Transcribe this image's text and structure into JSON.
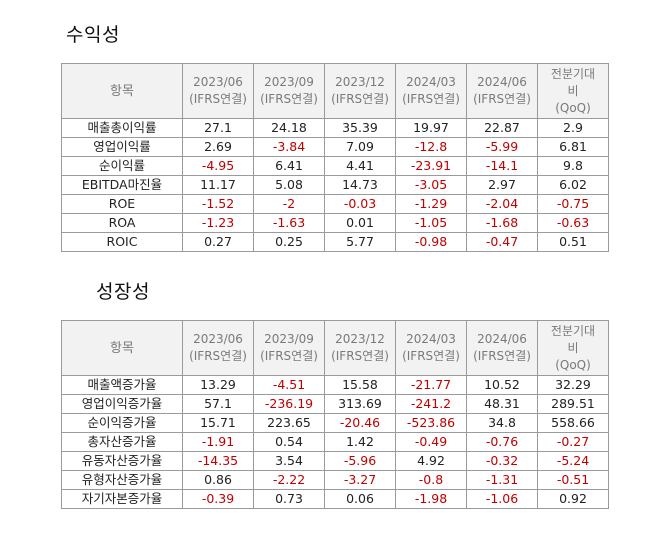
{
  "sections": [
    {
      "title": "수익성",
      "header": {
        "item": "항목",
        "periods": [
          {
            "period": "2023/06",
            "basis": "(IFRS연결)"
          },
          {
            "period": "2023/09",
            "basis": "(IFRS연결)"
          },
          {
            "period": "2023/12",
            "basis": "(IFRS연결)"
          },
          {
            "period": "2024/03",
            "basis": "(IFRS연결)"
          },
          {
            "period": "2024/06",
            "basis": "(IFRS연결)"
          }
        ],
        "qoq_line1": "전분기대",
        "qoq_line2": "비",
        "qoq_line3": "(QoQ)"
      },
      "rows": [
        {
          "label": "매출총이익률",
          "values": [
            "27.1",
            "24.18",
            "35.39",
            "19.97",
            "22.87",
            "2.9"
          ]
        },
        {
          "label": "영업이익률",
          "values": [
            "2.69",
            "-3.84",
            "7.09",
            "-12.8",
            "-5.99",
            "6.81"
          ]
        },
        {
          "label": "순이익률",
          "values": [
            "-4.95",
            "6.41",
            "4.41",
            "-23.91",
            "-14.1",
            "9.8"
          ]
        },
        {
          "label": "EBITDA마진율",
          "values": [
            "11.17",
            "5.08",
            "14.73",
            "-3.05",
            "2.97",
            "6.02"
          ]
        },
        {
          "label": "ROE",
          "values": [
            "-1.52",
            "-2",
            "-0.03",
            "-1.29",
            "-2.04",
            "-0.75"
          ]
        },
        {
          "label": "ROA",
          "values": [
            "-1.23",
            "-1.63",
            "0.01",
            "-1.05",
            "-1.68",
            "-0.63"
          ]
        },
        {
          "label": "ROIC",
          "values": [
            "0.27",
            "0.25",
            "5.77",
            "-0.98",
            "-0.47",
            "0.51"
          ]
        }
      ]
    },
    {
      "title": "성장성",
      "header": {
        "item": "항목",
        "periods": [
          {
            "period": "2023/06",
            "basis": "(IFRS연결)"
          },
          {
            "period": "2023/09",
            "basis": "(IFRS연결)"
          },
          {
            "period": "2023/12",
            "basis": "(IFRS연결)"
          },
          {
            "period": "2024/03",
            "basis": "(IFRS연결)"
          },
          {
            "period": "2024/06",
            "basis": "(IFRS연결)"
          }
        ],
        "qoq_line1": "전분기대",
        "qoq_line2": "비",
        "qoq_line3": "(QoQ)"
      },
      "rows": [
        {
          "label": "매출액증가율",
          "values": [
            "13.29",
            "-4.51",
            "15.58",
            "-21.77",
            "10.52",
            "32.29"
          ]
        },
        {
          "label": "영업이익증가율",
          "values": [
            "57.1",
            "-236.19",
            "313.69",
            "-241.2",
            "48.31",
            "289.51"
          ]
        },
        {
          "label": "순이익증가율",
          "values": [
            "15.71",
            "223.65",
            "-20.46",
            "-523.86",
            "34.8",
            "558.66"
          ]
        },
        {
          "label": "총자산증가율",
          "values": [
            "-1.91",
            "0.54",
            "1.42",
            "-0.49",
            "-0.76",
            "-0.27"
          ]
        },
        {
          "label": "유동자산증가율",
          "values": [
            "-14.35",
            "3.54",
            "-5.96",
            "4.92",
            "-0.32",
            "-5.24"
          ]
        },
        {
          "label": "유형자산증가율",
          "values": [
            "0.86",
            "-2.22",
            "-3.27",
            "-0.8",
            "-1.31",
            "-0.51"
          ]
        },
        {
          "label": "자기자본증가율",
          "values": [
            "-0.39",
            "0.73",
            "0.06",
            "-1.98",
            "-1.06",
            "0.92"
          ]
        }
      ]
    }
  ],
  "colors": {
    "negative": "#c00000",
    "positive": "#222222",
    "header_bg": "#f2f2f2",
    "header_text": "#7a7a7a",
    "border": "#9a9a9a"
  }
}
